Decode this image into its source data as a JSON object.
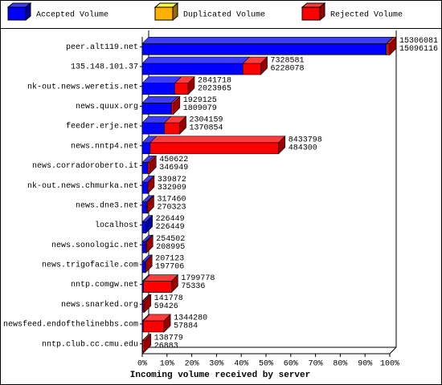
{
  "chart_data": {
    "type": "bar",
    "stacked": true,
    "orientation": "horizontal",
    "title": "Incoming volume received by server",
    "categories": [
      "peer.alt119.net",
      "135.148.101.37",
      "nk-out.news.weretis.net",
      "news.quux.org",
      "feeder.erje.net",
      "news.nntp4.net",
      "news.corradoroberto.it",
      "nk-out.news.chmurka.net",
      "news.dne3.net",
      "localhost",
      "news.sonologic.net",
      "news.trigofacile.com",
      "nntp.comgw.net",
      "news.snarked.org",
      "newsfeed.endofthelinebbs.com",
      "nntp.club.cc.cmu.edu"
    ],
    "series": [
      {
        "name": "Accepted Volume",
        "color": "#0000ff",
        "values": [
          98.6,
          40.7,
          13.2,
          11.8,
          9.0,
          3.2,
          2.3,
          2.2,
          1.8,
          1.5,
          1.4,
          1.3,
          0.5,
          0.4,
          0.4,
          0.2
        ]
      },
      {
        "name": "Duplicated Volume",
        "color": "#ffb000",
        "values": [
          0.4,
          0,
          0,
          0,
          0,
          0,
          0,
          0,
          0,
          0,
          0,
          0,
          0,
          0,
          0,
          0
        ]
      },
      {
        "name": "Rejected Volume",
        "color": "#ff0000",
        "values": [
          1.0,
          7.2,
          5.3,
          0.8,
          6.1,
          51.9,
          0.7,
          0.05,
          0.3,
          0,
          0.3,
          0.06,
          11.3,
          0.5,
          8.4,
          0.7
        ]
      }
    ],
    "total_volume": [
      15306081,
      7328581,
      2841718,
      1929125,
      2304159,
      8433798,
      450622,
      339872,
      317460,
      226449,
      254502,
      207123,
      1799778,
      141778,
      1344280,
      138779
    ],
    "accepted_volume": [
      15096116,
      6228078,
      2023965,
      1809079,
      1370854,
      484300,
      346949,
      332909,
      270323,
      226449,
      208995,
      197706,
      75336,
      59426,
      57884,
      26883
    ],
    "xlim": [
      0,
      100
    ],
    "xticks": [
      {
        "value": 0,
        "label": "0%"
      },
      {
        "value": 10,
        "label": "10%"
      },
      {
        "value": 20,
        "label": "20%"
      },
      {
        "value": 30,
        "label": "30%"
      },
      {
        "value": 40,
        "label": "40%"
      },
      {
        "value": 50,
        "label": "50%"
      },
      {
        "value": 60,
        "label": "60%"
      },
      {
        "value": 70,
        "label": "70%"
      },
      {
        "value": 80,
        "label": "80%"
      },
      {
        "value": 90,
        "label": "90%"
      },
      {
        "value": 100,
        "label": "100%"
      }
    ],
    "legend": "top"
  }
}
